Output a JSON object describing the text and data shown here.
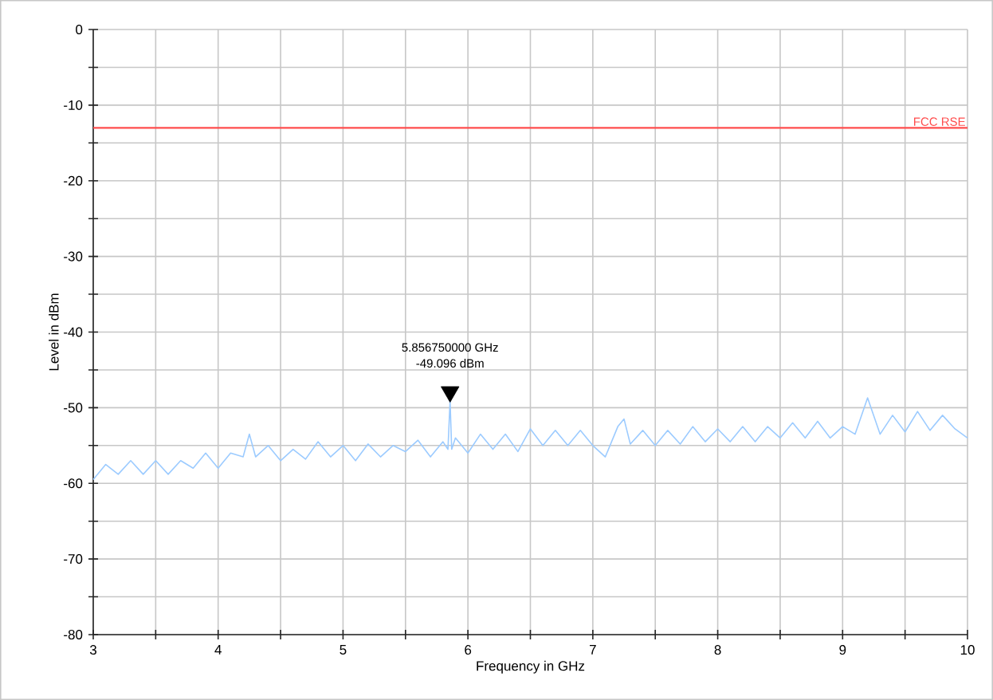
{
  "chart_data": {
    "type": "line",
    "xlabel": "Frequency in GHz",
    "ylabel": "Level in dBm",
    "xlim": [
      3,
      10
    ],
    "ylim": [
      -80,
      0
    ],
    "xticks": [
      3,
      {
        "value": 3.5,
        "label": null
      },
      4,
      {
        "value": 4.5,
        "label": null
      },
      5,
      {
        "value": 5.5,
        "label": null
      },
      6,
      {
        "value": 6.5,
        "label": null
      },
      7,
      {
        "value": 7.5,
        "label": null
      },
      8,
      {
        "value": 8.5,
        "label": null
      },
      9,
      {
        "value": 9.5,
        "label": null
      },
      10
    ],
    "yticks": [
      -80,
      {
        "value": -75,
        "label": null
      },
      -70,
      {
        "value": -65,
        "label": null
      },
      -60,
      {
        "value": -55,
        "label": null
      },
      -50,
      {
        "value": -45,
        "label": null
      },
      -40,
      {
        "value": -35,
        "label": null
      },
      -30,
      {
        "value": -25,
        "label": null
      },
      -20,
      {
        "value": -15,
        "label": null
      },
      -10,
      {
        "value": -5,
        "label": null
      },
      0
    ],
    "grid": true,
    "legend": false,
    "line_style": "solid",
    "series": [
      {
        "color": "#9ccbff",
        "x": [
          3.0,
          3.1,
          3.2,
          3.3,
          3.4,
          3.5,
          3.6,
          3.7,
          3.8,
          3.9,
          4.0,
          4.1,
          4.2,
          4.25,
          4.3,
          4.4,
          4.5,
          4.6,
          4.7,
          4.8,
          4.9,
          5.0,
          5.1,
          5.2,
          5.3,
          5.4,
          5.5,
          5.6,
          5.7,
          5.8,
          5.84,
          5.857,
          5.87,
          5.9,
          6.0,
          6.1,
          6.2,
          6.3,
          6.4,
          6.5,
          6.6,
          6.7,
          6.8,
          6.9,
          7.0,
          7.1,
          7.2,
          7.25,
          7.3,
          7.4,
          7.5,
          7.6,
          7.7,
          7.8,
          7.9,
          8.0,
          8.1,
          8.2,
          8.3,
          8.4,
          8.5,
          8.6,
          8.7,
          8.8,
          8.9,
          9.0,
          9.1,
          9.2,
          9.3,
          9.4,
          9.5,
          9.6,
          9.7,
          9.8,
          9.9,
          10.0
        ],
        "values": [
          -59.5,
          -57.5,
          -58.8,
          -57,
          -58.8,
          -57,
          -58.8,
          -57,
          -58,
          -56,
          -58,
          -56,
          -56.5,
          -53.5,
          -56.5,
          -55,
          -57,
          -55.5,
          -56.8,
          -54.5,
          -56.5,
          -55,
          -57,
          -54.8,
          -56.5,
          -55,
          -55.8,
          -54.3,
          -56.5,
          -54.5,
          -55.5,
          -49.1,
          -55.5,
          -54,
          -56,
          -53.5,
          -55.5,
          -53.5,
          -55.8,
          -52.8,
          -55,
          -53,
          -55,
          -53,
          -55,
          -56.5,
          -52.5,
          -51.5,
          -54.8,
          -53,
          -55,
          -53,
          -54.8,
          -52.5,
          -54.5,
          -52.8,
          -54.5,
          -52.5,
          -54.5,
          -52.5,
          -54,
          -52,
          -54,
          -51.8,
          -54,
          -52.5,
          -53.5,
          -48.7,
          -53.5,
          -51,
          -53.2,
          -50.5,
          -53,
          -51,
          -52.8,
          -54
        ]
      },
      {
        "type": "scatter",
        "color": "#000000",
        "x": [
          5.857
        ],
        "values": [
          -47.9
        ]
      }
    ],
    "ref_lines": [
      {
        "axis": "y",
        "value": -13,
        "label": "FCC RSE",
        "color": "#ff4d4d",
        "line_style": "solid"
      }
    ],
    "annotations": [
      "5.856750000 GHz",
      "-49.096 dBm"
    ]
  }
}
